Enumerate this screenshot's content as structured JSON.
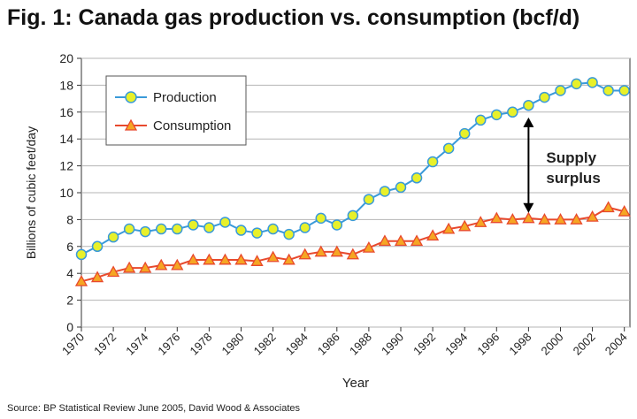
{
  "title": "Fig. 1: Canada gas production vs. consumption (bcf/d)",
  "source": "Source: BP Statistical Review June 2005, David Wood & Associates",
  "chart_data": {
    "type": "line",
    "title": "Fig. 1: Canada gas production vs. consumption (bcf/d)",
    "xlabel": "Year",
    "ylabel": "Billions of cubic feet/day",
    "xlim": [
      1970,
      2004
    ],
    "ylim": [
      0,
      20
    ],
    "x_ticks": [
      "1970",
      "1972",
      "1974",
      "1976",
      "1978",
      "1980",
      "1982",
      "1984",
      "1986",
      "1988",
      "1990",
      "1992",
      "1994",
      "1996",
      "1998",
      "2000",
      "2002",
      "2004"
    ],
    "y_ticks": [
      "0",
      "2",
      "4",
      "6",
      "8",
      "10",
      "12",
      "14",
      "16",
      "18",
      "20"
    ],
    "grid": true,
    "legend_position": "top-left",
    "x": [
      1970,
      1971,
      1972,
      1973,
      1974,
      1975,
      1976,
      1977,
      1978,
      1979,
      1980,
      1981,
      1982,
      1983,
      1984,
      1985,
      1986,
      1987,
      1988,
      1989,
      1990,
      1991,
      1992,
      1993,
      1994,
      1995,
      1996,
      1997,
      1998,
      1999,
      2000,
      2001,
      2002,
      2003,
      2004
    ],
    "series": [
      {
        "name": "Production",
        "color": "#3a9ad9",
        "marker_color": "#e8f02a",
        "marker": "circle",
        "values": [
          5.4,
          6.0,
          6.7,
          7.3,
          7.1,
          7.3,
          7.3,
          7.6,
          7.4,
          7.8,
          7.2,
          7.0,
          7.3,
          6.9,
          7.4,
          8.1,
          7.6,
          8.3,
          9.5,
          10.1,
          10.4,
          11.1,
          12.3,
          13.3,
          14.4,
          15.4,
          15.8,
          16.0,
          16.5,
          17.1,
          17.6,
          18.1,
          18.2,
          17.6,
          17.6
        ]
      },
      {
        "name": "Consumption",
        "color": "#e8492d",
        "marker_color": "#f5a623",
        "marker": "triangle",
        "values": [
          3.4,
          3.7,
          4.1,
          4.4,
          4.4,
          4.6,
          4.6,
          5.0,
          5.0,
          5.0,
          5.0,
          4.9,
          5.2,
          5.0,
          5.4,
          5.6,
          5.6,
          5.4,
          5.9,
          6.4,
          6.4,
          6.4,
          6.8,
          7.3,
          7.5,
          7.8,
          8.1,
          8.0,
          8.1,
          8.0,
          8.0,
          8.0,
          8.2,
          8.9,
          8.6
        ]
      }
    ],
    "annotations": [
      {
        "text": "Supply surplus",
        "lines": [
          "Supply",
          "surplus"
        ],
        "x": 1998,
        "y_from": 15.6,
        "y_to": 8.5
      }
    ]
  }
}
